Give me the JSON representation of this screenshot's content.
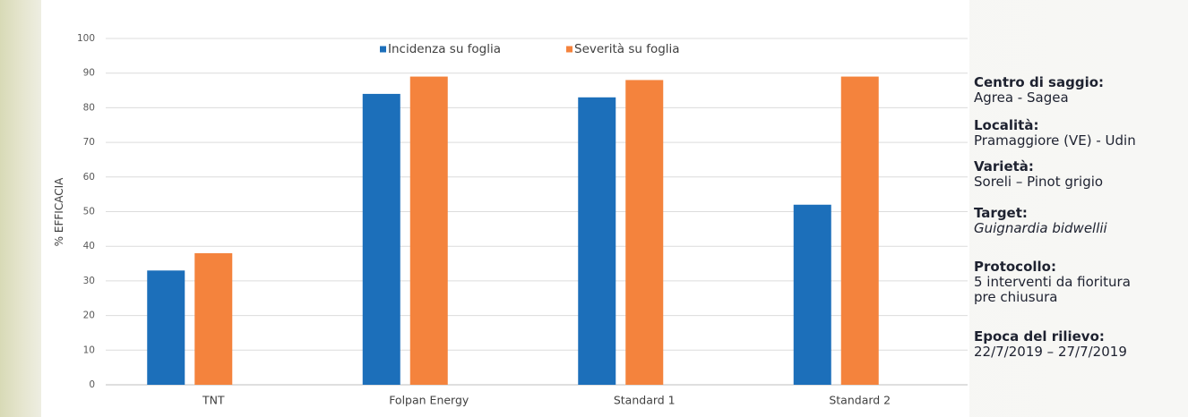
{
  "chart_data": {
    "type": "bar",
    "categories": [
      "TNT",
      "Folpan Energy",
      "Standard 1",
      "Standard 2"
    ],
    "series": [
      {
        "name": "Incidenza su foglia",
        "values": [
          33,
          84,
          83,
          52
        ],
        "color": "#1c6fba"
      },
      {
        "name": "Severità su foglia",
        "values": [
          38,
          89,
          88,
          89
        ],
        "color": "#f4833d"
      }
    ],
    "ylabel": "% EFFICACIA",
    "ylim": [
      0,
      100
    ],
    "yticks": [
      0,
      10,
      20,
      30,
      40,
      50,
      60,
      70,
      80,
      90,
      100
    ],
    "grid": true,
    "legend": "top"
  },
  "info": {
    "centro": {
      "label": "Centro di saggio:",
      "value": "Agrea - Sagea"
    },
    "localita": {
      "label": "Località:",
      "value": "Pramaggiore (VE) - Udin"
    },
    "varieta": {
      "label": "Varietà:",
      "value": "Soreli – Pinot grigio"
    },
    "target": {
      "label": "Target:",
      "value": "Guignardia bidwellii"
    },
    "protocollo": {
      "label": "Protocollo:",
      "lines": [
        "5 interventi da fioritura",
        "pre chiusura"
      ]
    },
    "epoca": {
      "label": "Epoca del rilievo:",
      "value": "22/7/2019 – 27/7/2019"
    }
  }
}
